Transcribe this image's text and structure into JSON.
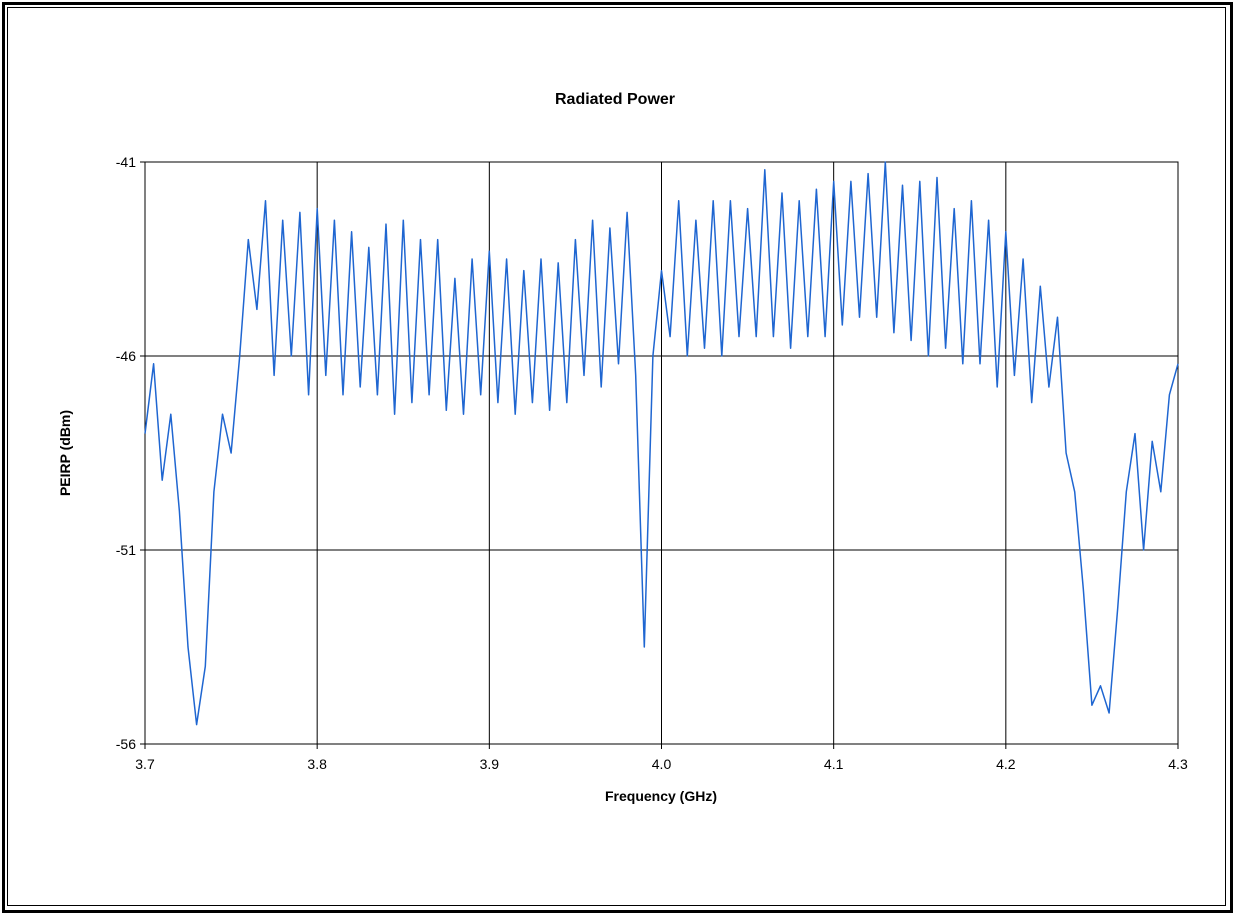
{
  "chart_data": {
    "type": "line",
    "title": "Radiated Power",
    "xlabel": "Frequency (GHz)",
    "ylabel": "PEIRP (dBm)",
    "xlim": [
      3.7,
      4.3
    ],
    "ylim": [
      -56,
      -41
    ],
    "x_ticks": [
      "3.7",
      "3.8",
      "3.9",
      "4.0",
      "4.1",
      "4.2",
      "4.3"
    ],
    "y_ticks": [
      "-41",
      "-46",
      "-51",
      "-56"
    ],
    "grid": true,
    "legend": "none",
    "line_color": "#1f66d1",
    "series": [
      {
        "x": [
          3.7,
          3.705,
          3.71,
          3.715,
          3.72,
          3.725,
          3.73,
          3.735,
          3.74,
          3.745,
          3.75,
          3.755,
          3.76,
          3.765,
          3.77,
          3.775,
          3.78,
          3.785,
          3.79,
          3.795,
          3.8,
          3.805,
          3.81,
          3.815,
          3.82,
          3.825,
          3.83,
          3.835,
          3.84,
          3.845,
          3.85,
          3.855,
          3.86,
          3.865,
          3.87,
          3.875,
          3.88,
          3.885,
          3.89,
          3.895,
          3.9,
          3.905,
          3.91,
          3.915,
          3.92,
          3.925,
          3.93,
          3.935,
          3.94,
          3.945,
          3.95,
          3.955,
          3.96,
          3.965,
          3.97,
          3.975,
          3.98,
          3.985,
          3.99,
          3.995,
          4.0,
          4.005,
          4.01,
          4.015,
          4.02,
          4.025,
          4.03,
          4.035,
          4.04,
          4.045,
          4.05,
          4.055,
          4.06,
          4.065,
          4.07,
          4.075,
          4.08,
          4.085,
          4.09,
          4.095,
          4.1,
          4.105,
          4.11,
          4.115,
          4.12,
          4.125,
          4.13,
          4.135,
          4.14,
          4.145,
          4.15,
          4.155,
          4.16,
          4.165,
          4.17,
          4.175,
          4.18,
          4.185,
          4.19,
          4.195,
          4.2,
          4.205,
          4.21,
          4.215,
          4.22,
          4.225,
          4.23,
          4.235,
          4.24,
          4.245,
          4.25,
          4.255,
          4.26,
          4.265,
          4.27,
          4.275,
          4.28,
          4.285,
          4.29,
          4.295,
          4.3
        ],
        "values": [
          -48.0,
          -46.2,
          -49.2,
          -47.5,
          -50.0,
          -53.5,
          -55.5,
          -54.0,
          -49.5,
          -47.5,
          -48.5,
          -46.0,
          -43.0,
          -44.8,
          -42.0,
          -46.5,
          -42.5,
          -46.0,
          -42.3,
          -47.0,
          -42.2,
          -46.5,
          -42.5,
          -47.0,
          -42.8,
          -46.8,
          -43.2,
          -47.0,
          -42.6,
          -47.5,
          -42.5,
          -47.2,
          -43.0,
          -47.0,
          -43.0,
          -47.4,
          -44.0,
          -47.5,
          -43.5,
          -47.0,
          -43.3,
          -47.2,
          -43.5,
          -47.5,
          -43.8,
          -47.2,
          -43.5,
          -47.4,
          -43.6,
          -47.2,
          -43.0,
          -46.5,
          -42.5,
          -46.8,
          -42.7,
          -46.2,
          -42.3,
          -46.5,
          -53.5,
          -46.0,
          -43.8,
          -45.5,
          -42.0,
          -46.0,
          -42.5,
          -45.8,
          -42.0,
          -46.0,
          -42.0,
          -45.5,
          -42.2,
          -45.5,
          -41.2,
          -45.5,
          -41.8,
          -45.8,
          -42.0,
          -45.5,
          -41.7,
          -45.5,
          -41.5,
          -45.2,
          -41.5,
          -45.0,
          -41.3,
          -45.0,
          -41.0,
          -45.4,
          -41.6,
          -45.6,
          -41.5,
          -46.0,
          -41.4,
          -45.8,
          -42.2,
          -46.2,
          -42.0,
          -46.2,
          -42.5,
          -46.8,
          -42.8,
          -46.5,
          -43.5,
          -47.2,
          -44.2,
          -46.8,
          -45.0,
          -48.5,
          -49.5,
          -52.0,
          -55.0,
          -54.5,
          -55.2,
          -52.5,
          -49.5,
          -48.0,
          -51.0,
          -48.2,
          -49.5,
          -47.0,
          -46.2
        ]
      }
    ]
  }
}
